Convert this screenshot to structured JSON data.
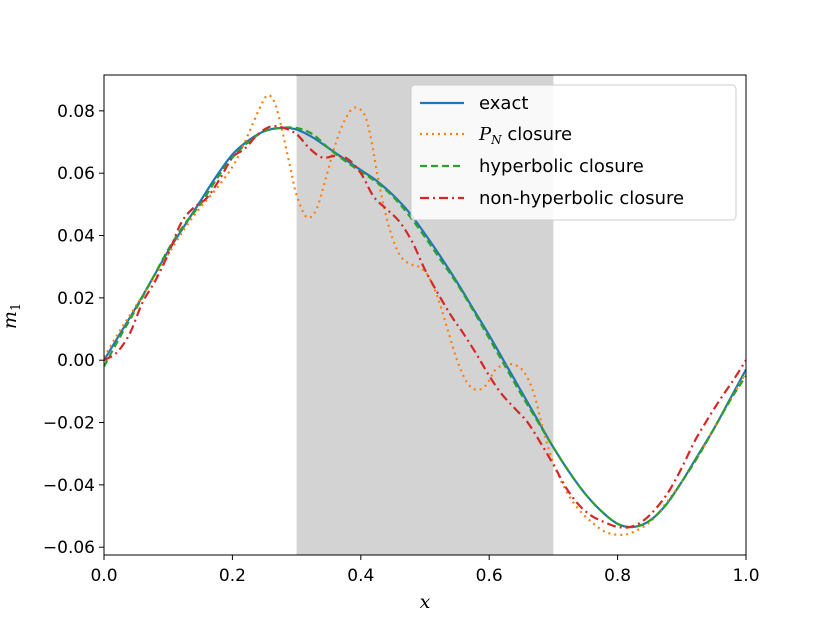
{
  "chart_data": {
    "type": "line",
    "title": "",
    "xlabel": "x",
    "ylabel": "m_1",
    "ylabel_main": "m",
    "ylabel_sub": "1",
    "xlim": [
      0.0,
      1.0
    ],
    "ylim": [
      -0.0625,
      0.0915
    ],
    "xticks": [
      0.0,
      0.2,
      0.4,
      0.6,
      0.8,
      1.0
    ],
    "xtick_labels": [
      "0.0",
      "0.2",
      "0.4",
      "0.6",
      "0.8",
      "1.0"
    ],
    "yticks": [
      -0.06,
      -0.04,
      -0.02,
      0.0,
      0.02,
      0.04,
      0.06,
      0.08
    ],
    "ytick_labels": [
      "−0.06",
      "−0.04",
      "−0.02",
      "0.00",
      "0.02",
      "0.04",
      "0.06",
      "0.08"
    ],
    "grid": false,
    "legend_position": "top-right",
    "shaded_region": {
      "x": [
        0.3,
        0.7
      ],
      "color": "#d3d3d3"
    },
    "series": [
      {
        "name": "exact",
        "color": "#1f77b4",
        "style": "solid",
        "x": [
          0.0,
          0.025,
          0.05,
          0.075,
          0.1,
          0.125,
          0.15,
          0.175,
          0.2,
          0.225,
          0.25,
          0.275,
          0.3,
          0.325,
          0.35,
          0.375,
          0.4,
          0.425,
          0.45,
          0.475,
          0.5,
          0.525,
          0.55,
          0.575,
          0.6,
          0.625,
          0.65,
          0.675,
          0.7,
          0.725,
          0.75,
          0.775,
          0.8,
          0.825,
          0.85,
          0.875,
          0.9,
          0.925,
          0.95,
          0.975,
          1.0
        ],
        "y": [
          0.0,
          0.0085,
          0.017,
          0.026,
          0.035,
          0.043,
          0.051,
          0.059,
          0.066,
          0.0705,
          0.0735,
          0.0745,
          0.074,
          0.0715,
          0.068,
          0.0645,
          0.061,
          0.0575,
          0.053,
          0.0475,
          0.0405,
          0.033,
          0.025,
          0.0165,
          0.008,
          -0.001,
          -0.01,
          -0.019,
          -0.028,
          -0.036,
          -0.043,
          -0.0485,
          -0.0525,
          -0.0535,
          -0.0515,
          -0.0465,
          -0.039,
          -0.0305,
          -0.022,
          -0.0125,
          -0.003
        ]
      },
      {
        "name": "P_N closure",
        "label_main": "P",
        "label_sub": "N",
        "label_rest": " closure",
        "color": "#ff7f0e",
        "style": "dotted",
        "x": [
          0.0,
          0.025,
          0.05,
          0.075,
          0.1,
          0.125,
          0.15,
          0.175,
          0.2,
          0.215,
          0.23,
          0.245,
          0.255,
          0.265,
          0.275,
          0.29,
          0.3,
          0.315,
          0.33,
          0.345,
          0.36,
          0.375,
          0.39,
          0.405,
          0.415,
          0.43,
          0.445,
          0.46,
          0.475,
          0.49,
          0.505,
          0.52,
          0.535,
          0.55,
          0.565,
          0.58,
          0.595,
          0.61,
          0.625,
          0.64,
          0.655,
          0.67,
          0.685,
          0.7,
          0.72,
          0.74,
          0.76,
          0.78,
          0.8,
          0.82,
          0.85,
          0.875,
          0.9,
          0.925,
          0.95,
          0.975,
          1.0
        ],
        "y": [
          0.001,
          0.0095,
          0.0175,
          0.0255,
          0.034,
          0.042,
          0.049,
          0.055,
          0.062,
          0.068,
          0.075,
          0.082,
          0.085,
          0.083,
          0.076,
          0.062,
          0.053,
          0.046,
          0.048,
          0.058,
          0.069,
          0.077,
          0.081,
          0.079,
          0.072,
          0.055,
          0.042,
          0.034,
          0.031,
          0.03,
          0.027,
          0.02,
          0.01,
          0.0,
          -0.007,
          -0.0095,
          -0.008,
          -0.003,
          -0.0015,
          -0.0015,
          -0.004,
          -0.011,
          -0.023,
          -0.033,
          -0.042,
          -0.048,
          -0.052,
          -0.055,
          -0.056,
          -0.0555,
          -0.052,
          -0.046,
          -0.039,
          -0.031,
          -0.022,
          -0.013,
          -0.004
        ]
      },
      {
        "name": "hyperbolic closure",
        "color": "#2ca02c",
        "style": "dashed",
        "x": [
          0.0,
          0.025,
          0.05,
          0.075,
          0.1,
          0.125,
          0.15,
          0.175,
          0.2,
          0.225,
          0.25,
          0.275,
          0.3,
          0.325,
          0.35,
          0.375,
          0.4,
          0.425,
          0.45,
          0.475,
          0.5,
          0.525,
          0.55,
          0.575,
          0.6,
          0.625,
          0.65,
          0.675,
          0.7,
          0.725,
          0.75,
          0.775,
          0.8,
          0.825,
          0.85,
          0.875,
          0.9,
          0.925,
          0.95,
          0.975,
          1.0
        ],
        "y": [
          -0.002,
          0.0075,
          0.0165,
          0.026,
          0.0355,
          0.0435,
          0.05,
          0.058,
          0.065,
          0.07,
          0.0735,
          0.0745,
          0.0745,
          0.0725,
          0.068,
          0.064,
          0.0605,
          0.057,
          0.0525,
          0.0465,
          0.0395,
          0.032,
          0.0245,
          0.016,
          0.007,
          -0.002,
          -0.011,
          -0.0195,
          -0.028,
          -0.036,
          -0.043,
          -0.0485,
          -0.0525,
          -0.0535,
          -0.0515,
          -0.0465,
          -0.039,
          -0.031,
          -0.022,
          -0.013,
          -0.005
        ]
      },
      {
        "name": "non-hyperbolic closure",
        "color": "#d62728",
        "style": "dashdot",
        "x": [
          0.0,
          0.02,
          0.04,
          0.06,
          0.08,
          0.1,
          0.12,
          0.14,
          0.16,
          0.18,
          0.2,
          0.22,
          0.24,
          0.26,
          0.28,
          0.3,
          0.32,
          0.34,
          0.36,
          0.38,
          0.4,
          0.42,
          0.44,
          0.46,
          0.48,
          0.5,
          0.52,
          0.54,
          0.56,
          0.58,
          0.6,
          0.62,
          0.64,
          0.66,
          0.68,
          0.7,
          0.72,
          0.74,
          0.76,
          0.78,
          0.8,
          0.82,
          0.84,
          0.86,
          0.88,
          0.9,
          0.92,
          0.94,
          0.96,
          0.98,
          1.0
        ],
        "y": [
          0.0,
          0.0025,
          0.0085,
          0.0185,
          0.0255,
          0.034,
          0.044,
          0.049,
          0.052,
          0.058,
          0.065,
          0.068,
          0.0725,
          0.075,
          0.0745,
          0.0725,
          0.068,
          0.065,
          0.0655,
          0.0645,
          0.06,
          0.0525,
          0.0485,
          0.0445,
          0.038,
          0.029,
          0.0215,
          0.0145,
          0.0085,
          0.002,
          -0.005,
          -0.011,
          -0.0155,
          -0.02,
          -0.0265,
          -0.0335,
          -0.041,
          -0.0465,
          -0.05,
          -0.052,
          -0.0535,
          -0.0535,
          -0.0515,
          -0.0475,
          -0.042,
          -0.0345,
          -0.026,
          -0.019,
          -0.0125,
          -0.0065,
          0.0
        ]
      }
    ]
  }
}
